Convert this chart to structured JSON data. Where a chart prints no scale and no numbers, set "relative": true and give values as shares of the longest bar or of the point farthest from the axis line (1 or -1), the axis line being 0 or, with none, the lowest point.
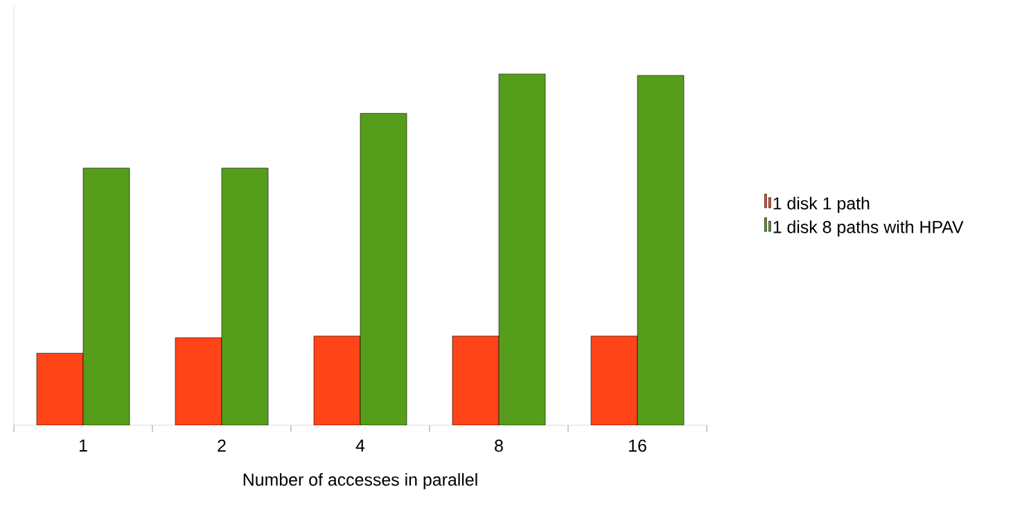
{
  "chart_data": {
    "type": "bar",
    "relative": true,
    "xlabel": "Number of accesses in parallel",
    "categories": [
      "1",
      "2",
      "4",
      "8",
      "16"
    ],
    "series": [
      {
        "name": "1 disk 1 path",
        "color": "#ff4418",
        "values": [
          0.205,
          0.249,
          0.254,
          0.254,
          0.254
        ]
      },
      {
        "name": "1 disk 8 paths with HPAV",
        "color": "#579d1c",
        "values": [
          0.732,
          0.732,
          0.888,
          1,
          0.996
        ]
      }
    ],
    "legend": "right"
  }
}
